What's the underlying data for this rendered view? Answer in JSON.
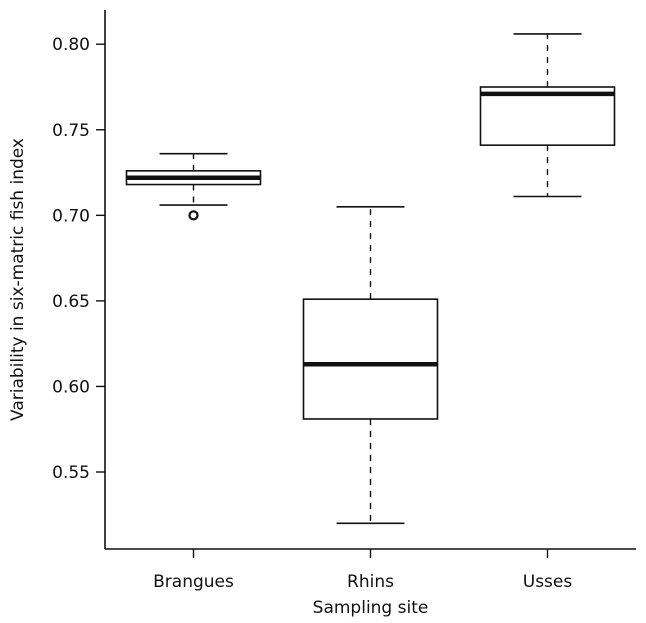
{
  "chart_data": {
    "type": "box",
    "xlabel": "Sampling site",
    "ylabel": "Variability in six-matric fish index",
    "ylim": [
      0.505,
      0.82
    ],
    "yticks": [
      0.55,
      0.6,
      0.65,
      0.7,
      0.75,
      0.8
    ],
    "ytick_labels": [
      "0.55",
      "0.60",
      "0.65",
      "0.70",
      "0.75",
      "0.80"
    ],
    "categories": [
      "Brangues",
      "Rhins",
      "Usses"
    ],
    "boxes": [
      {
        "category": "Brangues",
        "whisker_low": 0.706,
        "q1": 0.718,
        "median": 0.722,
        "q3": 0.726,
        "whisker_high": 0.736,
        "outliers": [
          0.7
        ]
      },
      {
        "category": "Rhins",
        "whisker_low": 0.52,
        "q1": 0.581,
        "median": 0.613,
        "q3": 0.651,
        "whisker_high": 0.705,
        "outliers": []
      },
      {
        "category": "Usses",
        "whisker_low": 0.711,
        "q1": 0.741,
        "median": 0.771,
        "q3": 0.775,
        "whisker_high": 0.806,
        "outliers": []
      }
    ],
    "grid": false,
    "colors": {
      "stroke": "#111111",
      "fill": "#ffffff"
    }
  }
}
